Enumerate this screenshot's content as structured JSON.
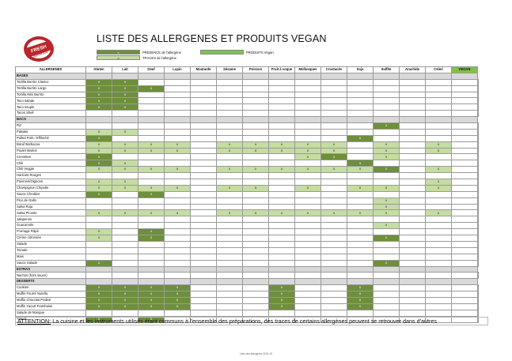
{
  "header": {
    "title": "LISTE DES ALLERGENES ET PRODUITS VEGAN",
    "logo_text": "FRESH BURRITOS"
  },
  "legend": {
    "presence_mark": "x",
    "presence_label": "PRESENCE de l'allergène",
    "traces_mark": "x",
    "traces_label": "TRACES de l'allergène",
    "vegan_label": "PRODUITS Vegan"
  },
  "colors": {
    "presence": "#6e8f3b",
    "traces": "#c5dca2",
    "vegan": "#7fc24a",
    "section": "#d9d9d9"
  },
  "columns": [
    "ALLERGENES",
    "Gluten",
    "Lait",
    "Oeuf",
    "Lupin",
    "Moutarde",
    "Sésame",
    "Poisson",
    "Fruit à coque",
    "Mollusques",
    "Crustacés",
    "Soja",
    "Sulfite",
    "Arachide",
    "Celeri",
    "VEGAN"
  ],
  "rows": [
    {
      "section": "BASES"
    },
    {
      "name": "Tortilla Burrito Clasico",
      "c": [
        "p",
        "p",
        "",
        "",
        "",
        "",
        "",
        "",
        "",
        "",
        "",
        "",
        "",
        "",
        ""
      ],
      "vegan": true
    },
    {
      "name": "Tortilla Burrito Largo",
      "c": [
        "p",
        "p",
        "p",
        "",
        "",
        "",
        "",
        "",
        "",
        "",
        "",
        "",
        "",
        "",
        ""
      ],
      "vegan": true
    },
    {
      "name": "Tortilla Mini Burrito",
      "c": [
        "p",
        "p",
        "",
        "",
        "",
        "",
        "",
        "",
        "",
        "",
        "",
        "",
        "",
        "",
        ""
      ],
      "vegan": true
    },
    {
      "name": "Taco salade",
      "c": [
        "p",
        "p",
        "",
        "",
        "",
        "",
        "",
        "",
        "",
        "",
        "",
        "",
        "",
        "",
        ""
      ],
      "vegan": true
    },
    {
      "name": "Taco souple",
      "c": [
        "p",
        "p",
        "",
        "",
        "",
        "",
        "",
        "",
        "",
        "",
        "",
        "",
        "",
        "",
        ""
      ],
      "vegan": true
    },
    {
      "name": "Tacos Shell",
      "c": [
        "",
        "",
        "",
        "",
        "",
        "",
        "",
        "",
        "",
        "",
        "",
        "",
        "",
        "",
        ""
      ],
      "vegan": true
    },
    {
      "section": "BACS"
    },
    {
      "name": "Riz",
      "c": [
        "",
        "",
        "",
        "",
        "",
        "",
        "",
        "",
        "",
        "",
        "",
        "p",
        "",
        "",
        ""
      ],
      "vegan": true
    },
    {
      "name": "Patatas",
      "c": [
        "t",
        "t",
        "",
        "",
        "",
        "",
        "",
        "",
        "",
        "",
        "",
        "",
        "",
        "",
        ""
      ],
      "vegan": true
    },
    {
      "name": "Pulled Pork / Effiloché",
      "c": [
        "p",
        "",
        "",
        "",
        "",
        "",
        "",
        "",
        "",
        "",
        "p",
        "",
        "",
        "",
        ""
      ],
      "vegan": false
    },
    {
      "name": "Bœuf Barbacoa",
      "c": [
        "t",
        "t",
        "t",
        "t",
        "",
        "t",
        "t",
        "t",
        "t",
        "t",
        "",
        "t",
        "",
        "t",
        ""
      ],
      "vegan": false
    },
    {
      "name": "Poulet Mariné",
      "c": [
        "t",
        "t",
        "t",
        "t",
        "",
        "t",
        "t",
        "t",
        "t",
        "t",
        "",
        "t",
        "",
        "t",
        ""
      ],
      "vegan": false
    },
    {
      "name": "Crevettes",
      "c": [
        "p",
        "",
        "",
        "",
        "",
        "",
        "",
        "",
        "t",
        "p",
        "",
        "t",
        "",
        "",
        ""
      ],
      "vegan": false
    },
    {
      "name": "Chili",
      "c": [
        "p",
        "t",
        "",
        "",
        "",
        "",
        "",
        "",
        "",
        "",
        "p",
        "",
        "",
        "",
        ""
      ],
      "vegan": false
    },
    {
      "name": "Chili Veggie",
      "c": [
        "t",
        "t",
        "t",
        "t",
        "",
        "t",
        "t",
        "t",
        "t",
        "t",
        "t",
        "p",
        "",
        "t",
        ""
      ],
      "vegan": true
    },
    {
      "name": "Haricots Rouges",
      "c": [
        "",
        "",
        "",
        "",
        "",
        "",
        "",
        "",
        "",
        "",
        "",
        "",
        "",
        "",
        ""
      ],
      "vegan": true
    },
    {
      "name": "Poivrons/Oignons",
      "c": [
        "t",
        "t",
        "",
        "",
        "",
        "",
        "",
        "",
        "",
        "",
        "",
        "",
        "",
        "t",
        ""
      ],
      "vegan": true
    },
    {
      "name": "Champignon Chipotle",
      "c": [
        "t",
        "t",
        "t",
        "t",
        "",
        "t",
        "t",
        "",
        "t",
        "",
        "t",
        "t",
        "",
        "t",
        ""
      ],
      "vegan": true
    },
    {
      "name": "Sauce Cheddar",
      "c": [
        "p",
        "",
        "p",
        "",
        "",
        "",
        "",
        "",
        "",
        "",
        "",
        "",
        "",
        "",
        ""
      ],
      "vegan": false
    },
    {
      "name": "Pico de Gallo",
      "c": [
        "",
        "",
        "",
        "",
        "",
        "",
        "",
        "",
        "",
        "",
        "",
        "t",
        "",
        "",
        ""
      ],
      "vegan": true
    },
    {
      "name": "Salsa Roja",
      "c": [
        "",
        "",
        "",
        "",
        "",
        "",
        "",
        "",
        "",
        "",
        "",
        "t",
        "",
        "",
        ""
      ],
      "vegan": true
    },
    {
      "name": "Salsa Picante",
      "c": [
        "t",
        "t",
        "t",
        "t",
        "",
        "t",
        "t",
        "t",
        "t",
        "t",
        "t",
        "t",
        "",
        "t",
        ""
      ],
      "vegan": true
    },
    {
      "name": "Jalapenos",
      "c": [
        "",
        "",
        "",
        "",
        "",
        "",
        "",
        "",
        "",
        "",
        "",
        "",
        "",
        "",
        ""
      ],
      "vegan": true
    },
    {
      "name": "Guacamole",
      "c": [
        "",
        "",
        "",
        "",
        "",
        "",
        "",
        "",
        "",
        "",
        "",
        "t",
        "",
        "",
        ""
      ],
      "vegan": true
    },
    {
      "name": "Fromage Râpé",
      "c": [
        "t",
        "",
        "p",
        "",
        "",
        "",
        "",
        "",
        "",
        "",
        "",
        "",
        "",
        "",
        ""
      ],
      "vegan": false
    },
    {
      "name": "Crème citronnée",
      "c": [
        "t",
        "",
        "p",
        "",
        "",
        "",
        "",
        "",
        "",
        "",
        "",
        "p",
        "",
        "",
        ""
      ],
      "vegan": false
    },
    {
      "name": "Salade",
      "c": [
        "",
        "",
        "",
        "",
        "",
        "",
        "",
        "",
        "",
        "",
        "",
        "",
        "",
        "",
        ""
      ],
      "vegan": true
    },
    {
      "name": "Tomate",
      "c": [
        "",
        "",
        "",
        "",
        "",
        "",
        "",
        "",
        "",
        "",
        "",
        "",
        "",
        "",
        ""
      ],
      "vegan": true
    },
    {
      "name": "Mais",
      "c": [
        "",
        "",
        "",
        "",
        "",
        "",
        "",
        "",
        "",
        "",
        "",
        "",
        "",
        "",
        ""
      ],
      "vegan": true
    },
    {
      "name": "Sauce Salade",
      "c": [
        "p",
        "",
        "",
        "",
        "",
        "",
        "",
        "",
        "",
        "",
        "",
        "p",
        "",
        "",
        ""
      ],
      "vegan": true
    },
    {
      "section": "EXTRAS"
    },
    {
      "name": "Nachos (hors sauce)",
      "c": [
        "",
        "",
        "",
        "",
        "",
        "",
        "",
        "",
        "",
        "",
        "",
        "",
        "",
        "",
        ""
      ],
      "vegan": true
    },
    {
      "section": "DESSERTS"
    },
    {
      "name": "Cookies",
      "c": [
        "p",
        "p",
        "p",
        "p",
        "",
        "",
        "",
        "p",
        "",
        "",
        "p",
        "",
        "",
        "",
        ""
      ],
      "vegan": false
    },
    {
      "name": "Muffin Fourré Nutella",
      "c": [
        "p",
        "p",
        "p",
        "p",
        "",
        "",
        "",
        "p",
        "",
        "",
        "p",
        "",
        "",
        "",
        ""
      ],
      "vegan": false
    },
    {
      "name": "Muffin Chocolat Praliné",
      "c": [
        "p",
        "p",
        "p",
        "p",
        "",
        "",
        "",
        "p",
        "",
        "",
        "p",
        "",
        "",
        "",
        ""
      ],
      "vegan": false
    },
    {
      "name": "Muffin Yaourt Framboise",
      "c": [
        "p",
        "p",
        "p",
        "p",
        "",
        "",
        "",
        "p",
        "",
        "",
        "p",
        "",
        "",
        "",
        ""
      ],
      "vegan": false
    },
    {
      "name": "Salade de Mangue",
      "c": [
        "",
        "",
        "",
        "",
        "",
        "",
        "",
        "",
        "",
        "",
        "",
        "",
        "",
        "",
        ""
      ],
      "vegan": true
    },
    {
      "name": "Yaourt",
      "c": [
        "p",
        "",
        "p",
        "",
        "",
        "",
        "",
        "",
        "",
        "",
        "",
        "",
        "",
        "",
        ""
      ],
      "vegan": false
    }
  ],
  "notice": {
    "label": "ATTENTION:",
    "text": " La cuisine et les instruments utilisés étant communs à l'ensemble des préparations, des traces de certains allergènes peuvent se retrouver dans d'autres"
  },
  "footer": "Liste des allergènes 2020-15"
}
